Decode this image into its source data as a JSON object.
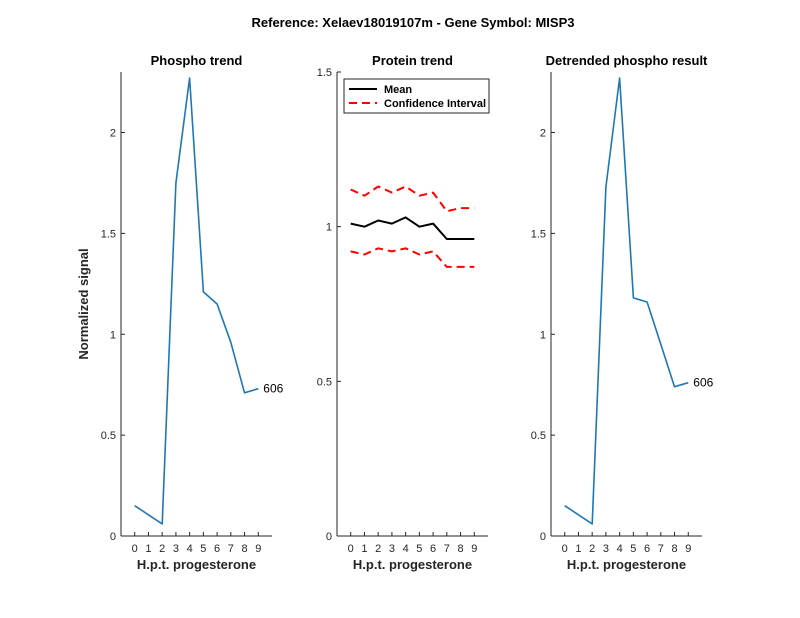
{
  "figure_title": "Reference:  Xelaev18019107m - Gene Symbol:  MISP3",
  "colors": {
    "blue": "#1f77b4",
    "black": "#000000",
    "red": "#ff0000",
    "axis": "#262626"
  },
  "chart_data": [
    {
      "type": "line",
      "title": "Phospho trend",
      "xlabel": "H.p.t. progesterone",
      "ylabel": "Normalized signal",
      "xlim": [
        -1,
        10
      ],
      "ylim": [
        0,
        2.3
      ],
      "xticks": [
        0,
        1,
        2,
        3,
        4,
        5,
        6,
        7,
        8,
        9
      ],
      "yticks": [
        0,
        0.5,
        1,
        1.5,
        2
      ],
      "ytick_labels": [
        "0",
        "0.5",
        "1",
        "1.5",
        "2"
      ],
      "series": [
        {
          "x": [
            0,
            2,
            3,
            4,
            5,
            6,
            7,
            8,
            9
          ],
          "y": [
            0.15,
            0.06,
            1.75,
            2.27,
            1.21,
            1.15,
            0.96,
            0.71,
            0.73
          ],
          "color": "#1f77b4",
          "style": "solid"
        }
      ],
      "end_label": "606"
    },
    {
      "type": "line",
      "title": "Protein trend",
      "xlabel": "H.p.t. progesterone",
      "ylabel": "",
      "xlim": [
        -1,
        10
      ],
      "ylim": [
        0,
        1.5
      ],
      "xticks": [
        0,
        1,
        2,
        3,
        4,
        5,
        6,
        7,
        8,
        9
      ],
      "yticks": [
        0,
        0.5,
        1,
        1.5
      ],
      "ytick_labels": [
        "0",
        "0.5",
        "1",
        "1.5"
      ],
      "legend": {
        "placement": "top-left",
        "entries": [
          "Mean",
          "Confidence Interval"
        ]
      },
      "series": [
        {
          "name": "Mean",
          "x": [
            0,
            1,
            2,
            3,
            4,
            5,
            6,
            7,
            8,
            9
          ],
          "y": [
            1.01,
            1.0,
            1.02,
            1.01,
            1.03,
            1.0,
            1.01,
            0.96,
            0.96,
            0.96
          ],
          "color": "#000000",
          "style": "solid"
        },
        {
          "name": "Confidence Interval",
          "x": [
            0,
            1,
            2,
            3,
            4,
            5,
            6,
            7,
            8,
            9
          ],
          "y": [
            1.12,
            1.1,
            1.13,
            1.11,
            1.13,
            1.1,
            1.11,
            1.05,
            1.06,
            1.06
          ],
          "color": "#ff0000",
          "style": "dashed"
        },
        {
          "name": "Confidence Interval",
          "x": [
            0,
            1,
            2,
            3,
            4,
            5,
            6,
            7,
            8,
            9
          ],
          "y": [
            0.92,
            0.91,
            0.93,
            0.92,
            0.93,
            0.91,
            0.92,
            0.87,
            0.87,
            0.87
          ],
          "color": "#ff0000",
          "style": "dashed"
        }
      ]
    },
    {
      "type": "line",
      "title": "Detrended phospho result",
      "xlabel": "H.p.t. progesterone",
      "ylabel": "",
      "xlim": [
        -1,
        10
      ],
      "ylim": [
        0,
        2.3
      ],
      "xticks": [
        0,
        1,
        2,
        3,
        4,
        5,
        6,
        7,
        8,
        9
      ],
      "yticks": [
        0,
        0.5,
        1,
        1.5,
        2
      ],
      "ytick_labels": [
        "0",
        "0.5",
        "1",
        "1.5",
        "2"
      ],
      "series": [
        {
          "x": [
            0,
            2,
            3,
            4,
            5,
            6,
            7,
            8,
            9
          ],
          "y": [
            0.15,
            0.06,
            1.73,
            2.27,
            1.18,
            1.16,
            0.95,
            0.74,
            0.76
          ],
          "color": "#1f77b4",
          "style": "solid"
        }
      ],
      "end_label": "606"
    }
  ]
}
